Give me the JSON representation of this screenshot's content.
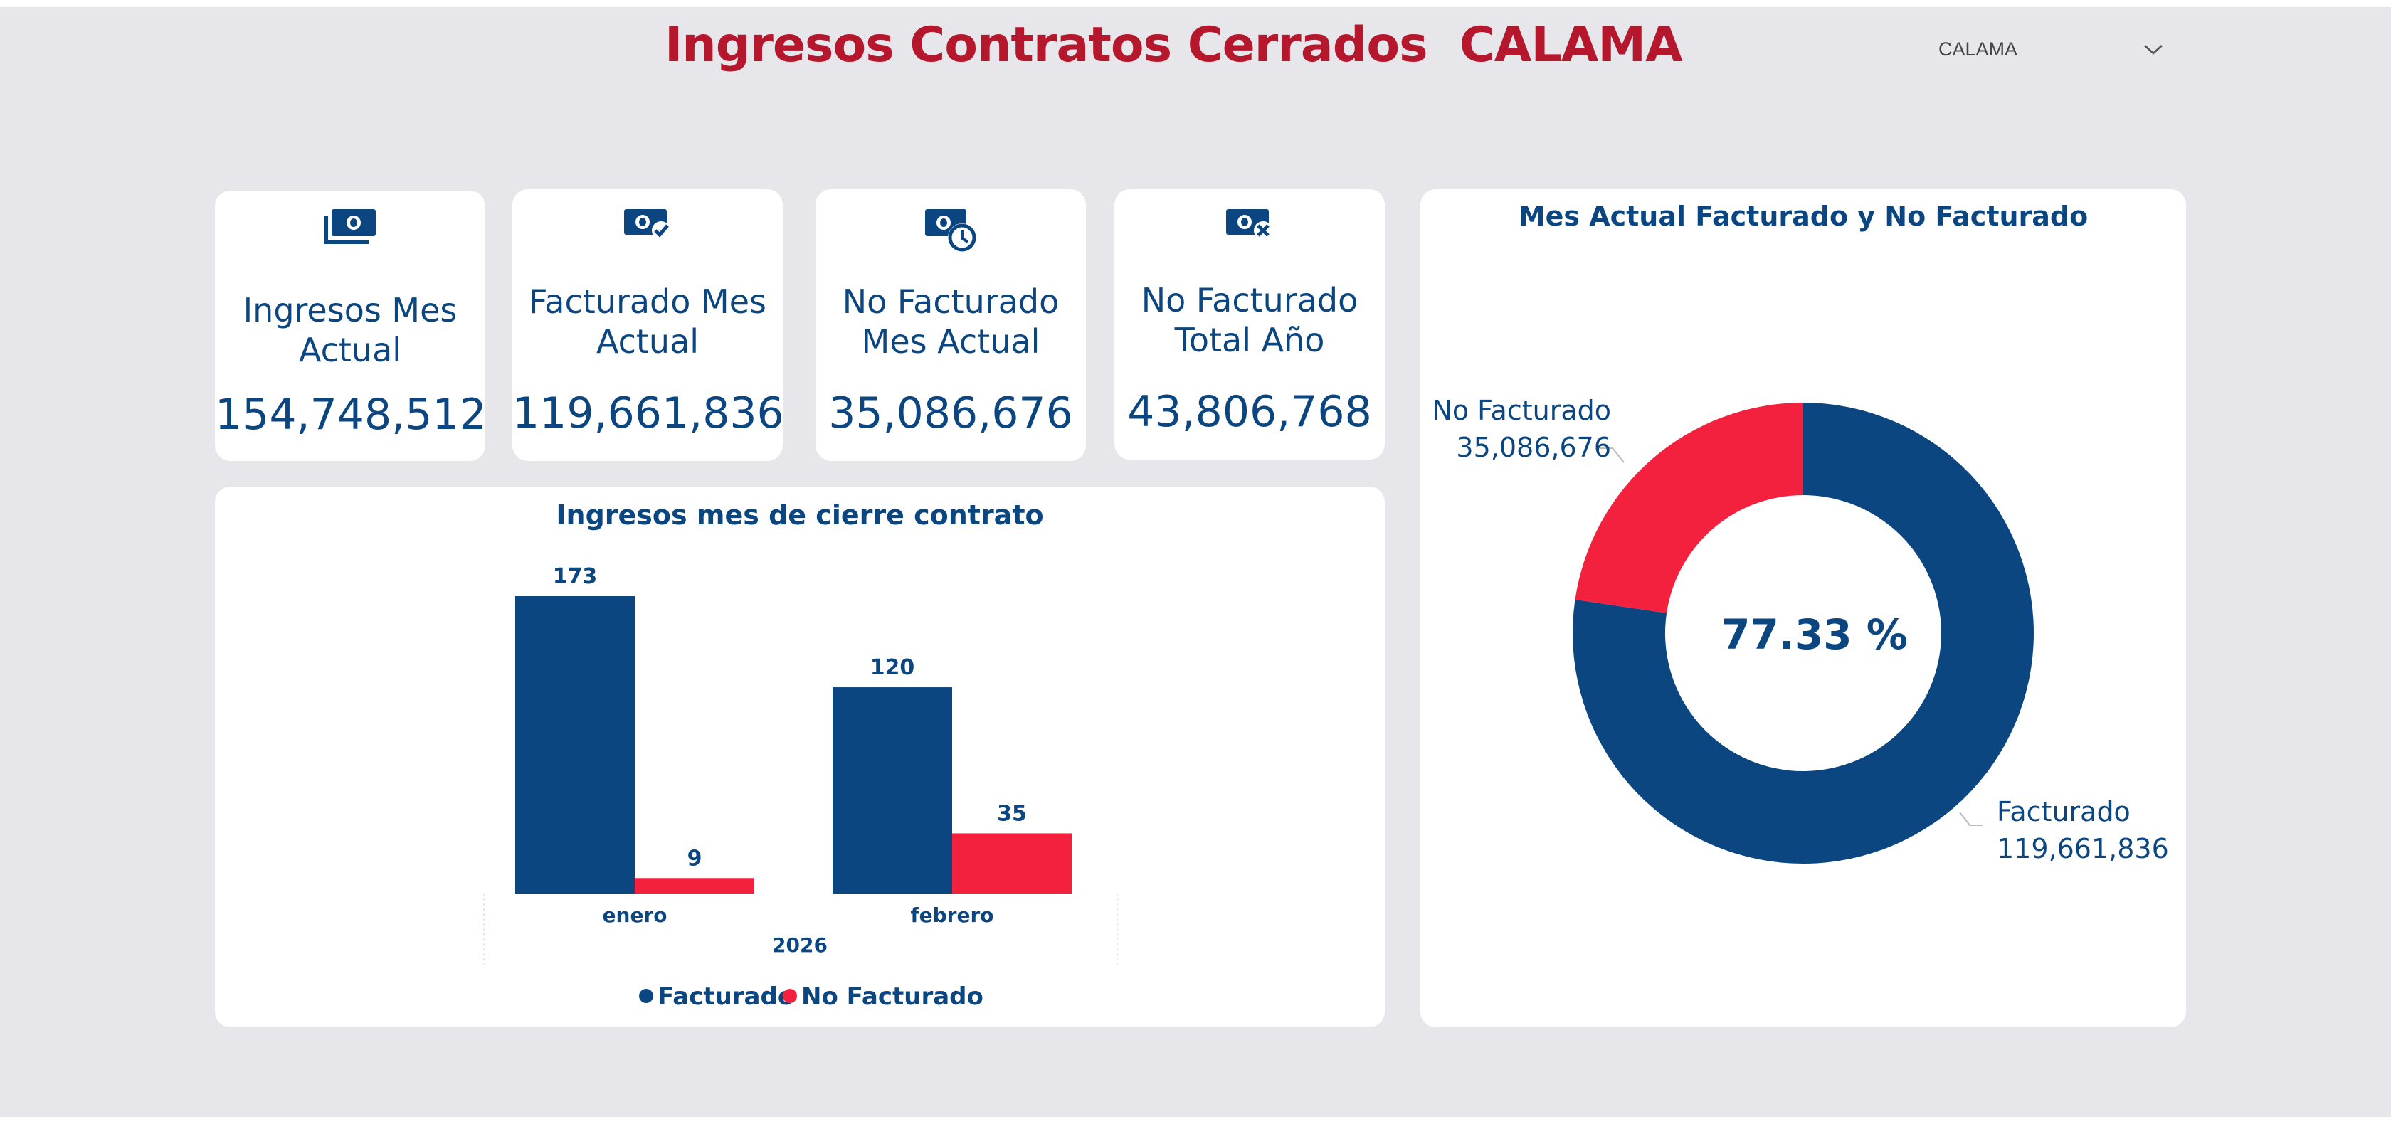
{
  "header": {
    "title": "Ingresos Contratos Cerrados  CALAMA",
    "slicer_value": "CALAMA"
  },
  "kpis": [
    {
      "icon": "money-stack-icon",
      "label_line1": "Ingresos Mes",
      "label_line2": "Actual",
      "value": "154,748,512"
    },
    {
      "icon": "money-check-icon",
      "label_line1": "Facturado Mes",
      "label_line2": "Actual",
      "value": "119,661,836"
    },
    {
      "icon": "money-clock-icon",
      "label_line1": "No Facturado",
      "label_line2": "Mes Actual",
      "value": "35,086,676"
    },
    {
      "icon": "money-x-icon",
      "label_line1": "No Facturado",
      "label_line2": "Total Año",
      "value": "43,806,768"
    }
  ],
  "colors": {
    "facturado": "#0b4680",
    "no_facturado": "#f3213d",
    "title": "#b5172d",
    "text": "#0b4680"
  },
  "bar_chart": {
    "title": "Ingresos mes de cierre contrato",
    "year_label": "2026",
    "legend": [
      {
        "label": "Facturado",
        "color": "#0b4680"
      },
      {
        "label": "No Facturado",
        "color": "#f3213d"
      }
    ]
  },
  "donut_chart": {
    "title": "Mes Actual Facturado y No Facturado",
    "center_label": "77.33 %",
    "slices": [
      {
        "label": "Facturado",
        "value_label": "119,661,836"
      },
      {
        "label": "No Facturado",
        "value_label": "35,086,676"
      }
    ]
  },
  "chart_data": [
    {
      "type": "bar",
      "title": "Ingresos mes de cierre contrato",
      "categories": [
        "enero",
        "febrero"
      ],
      "x_group_label": "2026",
      "series": [
        {
          "name": "Facturado",
          "values": [
            173,
            120
          ]
        },
        {
          "name": "No Facturado",
          "values": [
            9,
            35
          ]
        }
      ],
      "data_labels": true,
      "legend": "bottom-center",
      "grid": false
    },
    {
      "type": "pie",
      "subtype": "donut",
      "title": "Mes Actual Facturado y No Facturado",
      "labels": [
        "Facturado",
        "No Facturado"
      ],
      "values": [
        119661836,
        35086676
      ],
      "center_text": "77.33 %"
    }
  ]
}
